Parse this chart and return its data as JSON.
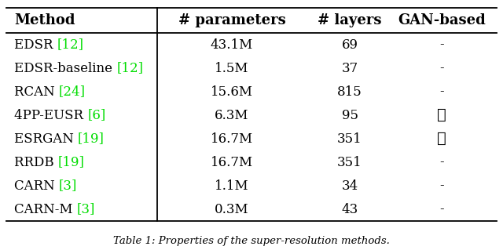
{
  "title": "Table 1: Properties of the super-resolution methods.",
  "columns": [
    "Method",
    "# parameters",
    "# layers",
    "GAN-based"
  ],
  "rows": [
    {
      "method": "EDSR",
      "cite": "[12]",
      "params": "43.1M",
      "layers": "69",
      "gan": false
    },
    {
      "method": "EDSR-baseline",
      "cite": "[12]",
      "params": "1.5M",
      "layers": "37",
      "gan": false
    },
    {
      "method": "RCAN",
      "cite": "[24]",
      "params": "15.6M",
      "layers": "815",
      "gan": false
    },
    {
      "method": "4PP-EUSR",
      "cite": "[6]",
      "params": "6.3M",
      "layers": "95",
      "gan": true
    },
    {
      "method": "ESRGAN",
      "cite": "[19]",
      "params": "16.7M",
      "layers": "351",
      "gan": true
    },
    {
      "method": "RRDB",
      "cite": "[19]",
      "params": "16.7M",
      "layers": "351",
      "gan": false
    },
    {
      "method": "CARN",
      "cite": "[3]",
      "params": "1.1M",
      "layers": "34",
      "gan": false
    },
    {
      "method": "CARN-M",
      "cite": "[3]",
      "params": "0.3M",
      "layers": "43",
      "gan": false
    }
  ],
  "bg_color": "#ffffff",
  "text_color": "#000000",
  "cite_color": "#00dd00",
  "line_color": "#000000",
  "font_size": 12,
  "header_font_size": 13
}
